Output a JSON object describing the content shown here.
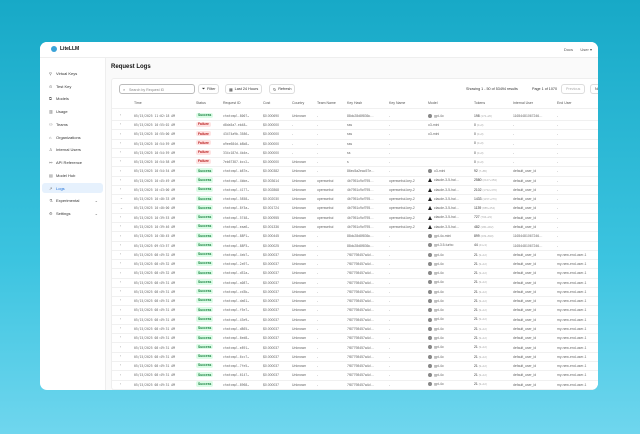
{
  "app": {
    "name": "LiteLLM",
    "docs": "Docs",
    "user": "User ▾"
  },
  "sidebar": {
    "items": [
      {
        "label": "Virtual Keys",
        "icon": "key-icon"
      },
      {
        "label": "Test Key",
        "icon": "play-icon"
      },
      {
        "label": "Models",
        "icon": "cube-icon"
      },
      {
        "label": "Usage",
        "icon": "chart-icon"
      },
      {
        "label": "Teams",
        "icon": "team-icon"
      },
      {
        "label": "Organizations",
        "icon": "bank-icon"
      },
      {
        "label": "Internal Users",
        "icon": "user-icon"
      },
      {
        "label": "API Reference",
        "icon": "link-icon"
      },
      {
        "label": "Model Hub",
        "icon": "book-icon"
      },
      {
        "label": "Logs",
        "icon": "line-chart-icon",
        "active": true
      },
      {
        "label": "Experimental",
        "icon": "flask-icon",
        "expandable": true
      },
      {
        "label": "Settings",
        "icon": "gear-icon",
        "expandable": true
      }
    ]
  },
  "page": {
    "title": "Request Logs"
  },
  "toolbar": {
    "search_placeholder": "Search by Request ID",
    "filter": "Filter",
    "time_range": "Last 24 Hours",
    "refresh": "Refresh",
    "showing": "Showing 1 - 50 of 53494 results",
    "page": "Page 1 of 1070",
    "previous": "Previous",
    "next": "Next"
  },
  "columns": [
    "Time",
    "Status",
    "Request ID",
    "Cost",
    "Country",
    "Team Name",
    "Key Hash",
    "Key Name",
    "Model",
    "Tokens",
    "Internal User",
    "End User"
  ],
  "colors": {
    "success_bg": "#dcfce7",
    "failure_bg": "#fee2e2",
    "active_nav": "#e6f1fd"
  },
  "rows": [
    {
      "exp": ">",
      "time": "05/15/2025 11:02:18 AM",
      "status": "Success",
      "id": "chatcmpl-8007…",
      "cost": "$0.000690",
      "country": "Unknown",
      "team": "-",
      "hash": "88dc28d8f836c…",
      "keyname": "-",
      "model": "gpt-4o",
      "micon": "openai",
      "tokens": "198",
      "tsub": "(172+26)",
      "iuser": "116544810672​46…",
      "euser": "-"
    },
    {
      "exp": ">",
      "time": "05/15/2025 10:55:02 AM",
      "status": "Failure",
      "id": "d8da5a7-eb48…",
      "cost": "$0.000000",
      "country": "-",
      "team": "-",
      "hash": "sss",
      "keyname": "-",
      "model": "o3-mini",
      "micon": "",
      "tokens": "0",
      "tsub": "(0+0)",
      "iuser": "-",
      "euser": "-"
    },
    {
      "exp": ">",
      "time": "05/15/2025 10:55:00 AM",
      "status": "Failure",
      "id": "43474a9b-3586…",
      "cost": "$0.000000",
      "country": "-",
      "team": "-",
      "hash": "sss",
      "keyname": "-",
      "model": "o3-mini",
      "micon": "",
      "tokens": "0",
      "tsub": "(0+0)",
      "iuser": "-",
      "euser": "-"
    },
    {
      "exp": ">",
      "time": "05/15/2025 10:54:59 AM",
      "status": "Failure",
      "id": "a9ee684d-b8b8…",
      "cost": "$0.000000",
      "country": "-",
      "team": "-",
      "hash": "sss",
      "keyname": "-",
      "model": "",
      "micon": "",
      "tokens": "0",
      "tsub": "(0+0)",
      "iuser": "-",
      "euser": "-"
    },
    {
      "exp": ">",
      "time": "05/15/2025 10:54:59 AM",
      "status": "Failure",
      "id": "334c187d-4b4e…",
      "cost": "$0.000000",
      "country": "-",
      "team": "-",
      "hash": "ss",
      "keyname": "-",
      "model": "",
      "micon": "",
      "tokens": "0",
      "tsub": "(0+0)",
      "iuser": "-",
      "euser": "-"
    },
    {
      "exp": ">",
      "time": "05/15/2025 10:54:58 AM",
      "status": "Failure",
      "id": "7eb67387-bcc2…",
      "cost": "$0.000000",
      "country": "Unknown",
      "team": "-",
      "hash": "s",
      "keyname": "-",
      "model": "",
      "micon": "",
      "tokens": "0",
      "tsub": "(0+0)",
      "iuser": "-",
      "euser": "-"
    },
    {
      "exp": ">",
      "time": "05/15/2025 10:54:54 AM",
      "status": "Success",
      "id": "chatcmpl-b87e…",
      "cost": "$0.000382",
      "country": "Unknown",
      "team": "-",
      "hash": "86ec5a2eac57e…",
      "keyname": "-",
      "model": "o3-mini",
      "micon": "openai",
      "tokens": "92",
      "tsub": "(7+85)",
      "iuser": "default_user_id",
      "euser": "-"
    },
    {
      "exp": ">",
      "time": "05/15/2025 10:45:49 AM",
      "status": "Success",
      "id": "chatcmpl-4bbe…",
      "cost": "$0.003614",
      "country": "Unknown",
      "team": "openwebui",
      "hash": "4b7951c9cf795…",
      "keyname": "openwebui-key-2",
      "model": "claude-3-5-hai…",
      "micon": "claude",
      "tokens": "2580",
      "tsub": "(2127+453)",
      "iuser": "default_user_id",
      "euser": "-"
    },
    {
      "exp": ">",
      "time": "05/15/2025 10:43:00 AM",
      "status": "Success",
      "id": "chatcmpl-4177…",
      "cost": "$0.002868",
      "country": "Unknown",
      "team": "openwebui",
      "hash": "4b7951c9cf795…",
      "keyname": "openwebui-key-2",
      "model": "claude-3-5-hai…",
      "micon": "claude",
      "tokens": "2102",
      "tsub": "(1732+370)",
      "iuser": "default_user_id",
      "euser": "-"
    },
    {
      "exp": "v",
      "time": "05/15/2025 10:40:33 AM",
      "status": "Success",
      "id": "chatcmpl-5858…",
      "cost": "$0.002030",
      "country": "Unknown",
      "team": "openwebui",
      "hash": "4b7951c9cf795…",
      "keyname": "openwebui-key-2",
      "model": "claude-3-5-hai…",
      "micon": "claude",
      "tokens": "1433",
      "tsub": "(1157+276)",
      "iuser": "default_user_id",
      "euser": "-"
    },
    {
      "exp": "v",
      "time": "05/15/2025 10:40:00 AM",
      "status": "Success",
      "id": "chatcmpl-8f3a…",
      "cost": "$0.001724",
      "country": "Unknown",
      "team": "openwebui",
      "hash": "4b7951c9cf795…",
      "keyname": "openwebui-key-2",
      "model": "claude-3-5-hai…",
      "micon": "claude",
      "tokens": "1139",
      "tsub": "(885+254)",
      "iuser": "default_user_id",
      "euser": "-"
    },
    {
      "exp": ">",
      "time": "05/15/2025 10:39:53 AM",
      "status": "Success",
      "id": "chatcmpl-5748…",
      "cost": "$0.000955",
      "country": "Unknown",
      "team": "openwebui",
      "hash": "4b7951c9cf795…",
      "keyname": "openwebui-key-2",
      "model": "claude-3-5-hai…",
      "micon": "claude",
      "tokens": "727",
      "tsub": "(704+23)",
      "iuser": "default_user_id",
      "euser": "-"
    },
    {
      "exp": ">",
      "time": "05/15/2025 10:39:46 AM",
      "status": "Success",
      "id": "chatcmpl-eaa6…",
      "cost": "$0.001336",
      "country": "Unknown",
      "team": "openwebui",
      "hash": "4b7951c9cf795…",
      "keyname": "openwebui-key-2",
      "model": "claude-3-5-hai…",
      "micon": "claude",
      "tokens": "482",
      "tsub": "(180+302)",
      "iuser": "default_user_id",
      "euser": "-"
    },
    {
      "exp": ">",
      "time": "05/15/2025 10:38:45 AM",
      "status": "Success",
      "id": "chatcmpl-88P1…",
      "cost": "$0.000445",
      "country": "Unknown",
      "team": "-",
      "hash": "88dc28d8f836c…",
      "keyname": "-",
      "model": "gpt-4o-mini",
      "micon": "openai",
      "tokens": "899",
      "tsub": "(209+690)",
      "iuser": "116544810672​46…",
      "euser": "-"
    },
    {
      "exp": ">",
      "time": "05/15/2025 09:53:57 AM",
      "status": "Success",
      "id": "chatcmpl-88P3…",
      "cost": "$0.000025",
      "country": "Unknown",
      "team": "-",
      "hash": "88dc28d8f836c…",
      "keyname": "-",
      "model": "gpt-3.5-turbo",
      "micon": "openai",
      "tokens": "44",
      "tsub": "(41+3)",
      "iuser": "116544810672​46…",
      "euser": "-"
    },
    {
      "exp": ">",
      "time": "05/15/2025 08:49:32 AM",
      "status": "Success",
      "id": "chatcmpl-4eb7…",
      "cost": "$0.000037",
      "country": "Unknown",
      "team": "-",
      "hash": "7f87798457a4d…",
      "keyname": "-",
      "model": "gpt-4o",
      "micon": "openai",
      "tokens": "21",
      "tsub": "(9+12)",
      "iuser": "default_user_id",
      "euser": "my-new-end-user-1"
    },
    {
      "exp": ">",
      "time": "05/15/2025 08:49:32 AM",
      "status": "Success",
      "id": "chatcmpl-2a97…",
      "cost": "$0.000037",
      "country": "Unknown",
      "team": "-",
      "hash": "7f87798457a4d…",
      "keyname": "-",
      "model": "gpt-4o",
      "micon": "openai",
      "tokens": "21",
      "tsub": "(9+12)",
      "iuser": "default_user_id",
      "euser": "my-new-end-user-1"
    },
    {
      "exp": ">",
      "time": "05/15/2025 08:49:32 AM",
      "status": "Success",
      "id": "chatcmpl-d52a…",
      "cost": "$0.000037",
      "country": "Unknown",
      "team": "-",
      "hash": "7f87798457a4d…",
      "keyname": "-",
      "model": "gpt-4o",
      "micon": "openai",
      "tokens": "21",
      "tsub": "(9+12)",
      "iuser": "default_user_id",
      "euser": "my-new-end-user-1"
    },
    {
      "exp": ">",
      "time": "05/15/2025 08:49:31 AM",
      "status": "Success",
      "id": "chatcmpl-a087…",
      "cost": "$0.000037",
      "country": "Unknown",
      "team": "-",
      "hash": "7f87798457a4d…",
      "keyname": "-",
      "model": "gpt-4o",
      "micon": "openai",
      "tokens": "21",
      "tsub": "(9+12)",
      "iuser": "default_user_id",
      "euser": "my-new-end-user-1"
    },
    {
      "exp": ">",
      "time": "05/15/2025 08:49:31 AM",
      "status": "Success",
      "id": "chatcmpl-cd3b…",
      "cost": "$0.000037",
      "country": "Unknown",
      "team": "-",
      "hash": "7f87798457a4d…",
      "keyname": "-",
      "model": "gpt-4o",
      "micon": "openai",
      "tokens": "21",
      "tsub": "(9+12)",
      "iuser": "default_user_id",
      "euser": "my-new-end-user-1"
    },
    {
      "exp": ">",
      "time": "05/15/2025 08:49:31 AM",
      "status": "Success",
      "id": "chatcmpl-da61…",
      "cost": "$0.000037",
      "country": "Unknown",
      "team": "-",
      "hash": "7f87798457a4d…",
      "keyname": "-",
      "model": "gpt-4o",
      "micon": "openai",
      "tokens": "21",
      "tsub": "(9+12)",
      "iuser": "default_user_id",
      "euser": "my-new-end-user-1"
    },
    {
      "exp": ">",
      "time": "05/15/2025 08:49:31 AM",
      "status": "Success",
      "id": "chatcmpl-f5e7…",
      "cost": "$0.000037",
      "country": "Unknown",
      "team": "-",
      "hash": "7f87798457a4d…",
      "keyname": "-",
      "model": "gpt-4o",
      "micon": "openai",
      "tokens": "21",
      "tsub": "(9+12)",
      "iuser": "default_user_id",
      "euser": "my-new-end-user-1"
    },
    {
      "exp": ">",
      "time": "05/15/2025 08:49:31 AM",
      "status": "Success",
      "id": "chatcmpl-43e9…",
      "cost": "$0.000037",
      "country": "Unknown",
      "team": "-",
      "hash": "7f87798457a4d…",
      "keyname": "-",
      "model": "gpt-4o",
      "micon": "openai",
      "tokens": "21",
      "tsub": "(9+12)",
      "iuser": "default_user_id",
      "euser": "my-new-end-user-1"
    },
    {
      "exp": ">",
      "time": "05/15/2025 08:49:31 AM",
      "status": "Success",
      "id": "chatcmpl-d865…",
      "cost": "$0.000037",
      "country": "Unknown",
      "team": "-",
      "hash": "7f87798457a4d…",
      "keyname": "-",
      "model": "gpt-4o",
      "micon": "openai",
      "tokens": "21",
      "tsub": "(9+12)",
      "iuser": "default_user_id",
      "euser": "my-new-end-user-1"
    },
    {
      "exp": ">",
      "time": "05/15/2025 08:49:31 AM",
      "status": "Success",
      "id": "chatcmpl-6ed8…",
      "cost": "$0.000037",
      "country": "Unknown",
      "team": "-",
      "hash": "7f87798457a4d…",
      "keyname": "-",
      "model": "gpt-4o",
      "micon": "openai",
      "tokens": "21",
      "tsub": "(9+12)",
      "iuser": "default_user_id",
      "euser": "my-new-end-user-1"
    },
    {
      "exp": ">",
      "time": "05/15/2025 08:49:31 AM",
      "status": "Success",
      "id": "chatcmpl-e891…",
      "cost": "$0.000037",
      "country": "Unknown",
      "team": "-",
      "hash": "7f87798457a4d…",
      "keyname": "-",
      "model": "gpt-4o",
      "micon": "openai",
      "tokens": "21",
      "tsub": "(9+12)",
      "iuser": "default_user_id",
      "euser": "my-new-end-user-1"
    },
    {
      "exp": ">",
      "time": "05/15/2025 08:49:31 AM",
      "status": "Success",
      "id": "chatcmpl-6cc7…",
      "cost": "$0.000037",
      "country": "Unknown",
      "team": "-",
      "hash": "7f87798457a4d…",
      "keyname": "-",
      "model": "gpt-4o",
      "micon": "openai",
      "tokens": "21",
      "tsub": "(9+12)",
      "iuser": "default_user_id",
      "euser": "my-new-end-user-1"
    },
    {
      "exp": ">",
      "time": "05/15/2025 08:49:31 AM",
      "status": "Success",
      "id": "chatcmpl-7fe5…",
      "cost": "$0.000037",
      "country": "Unknown",
      "team": "-",
      "hash": "7f87798457a4d…",
      "keyname": "-",
      "model": "gpt-4o",
      "micon": "openai",
      "tokens": "21",
      "tsub": "(9+12)",
      "iuser": "default_user_id",
      "euser": "my-new-end-user-1"
    },
    {
      "exp": ">",
      "time": "05/15/2025 08:49:31 AM",
      "status": "Success",
      "id": "chatcmpl-6147…",
      "cost": "$0.000037",
      "country": "Unknown",
      "team": "-",
      "hash": "7f87798457a4d…",
      "keyname": "-",
      "model": "gpt-4o",
      "micon": "openai",
      "tokens": "21",
      "tsub": "(9+12)",
      "iuser": "default_user_id",
      "euser": "my-new-end-user-1"
    },
    {
      "exp": ">",
      "time": "05/15/2025 08:49:31 AM",
      "status": "Success",
      "id": "chatcmpl-8968…",
      "cost": "$0.000037",
      "country": "Unknown",
      "team": "-",
      "hash": "7f87798457a4d…",
      "keyname": "-",
      "model": "gpt-4o",
      "micon": "openai",
      "tokens": "21",
      "tsub": "(9+12)",
      "iuser": "default_user_id",
      "euser": "my-new-end-user-1"
    }
  ]
}
